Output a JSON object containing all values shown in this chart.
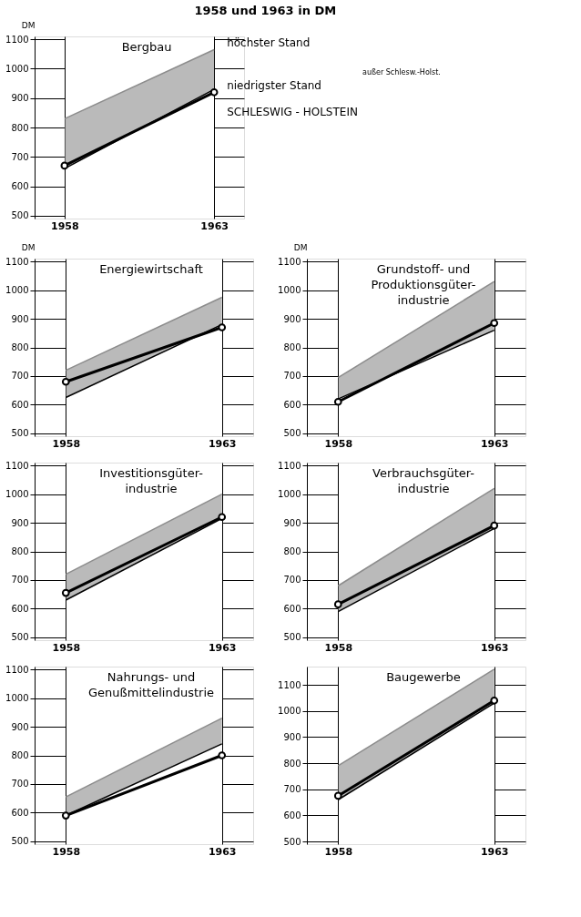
{
  "chart_data": [
    {
      "type": "line",
      "subtitle": "1958 und 1963 in DM",
      "title": "Bergbau",
      "ylabel": "DM",
      "categories": [
        "1958",
        "1963"
      ],
      "ylim": [
        490,
        1110
      ],
      "yticks": [
        500,
        600,
        700,
        800,
        900,
        1000,
        1100
      ],
      "grid": true,
      "legend": "right",
      "annotations": [
        "außer Schlesw.-Holst."
      ],
      "series": [
        {
          "name": "höchster Stand",
          "type": "line",
          "color": "#8c8c8c",
          "values": [
            830,
            1065
          ],
          "lower": [
            660,
            930
          ],
          "upper": [
            830,
            1065
          ]
        },
        {
          "name": "niedrigster Stand",
          "type": "line",
          "color": "#000000",
          "values": [
            660,
            930
          ]
        },
        {
          "name": "SCHLESWIG - HOLSTEIN",
          "type": "line",
          "color": "#000000",
          "marker": "circle",
          "values": [
            670,
            920
          ]
        }
      ]
    },
    {
      "type": "line",
      "title": "Energiewirtschaft",
      "ylabel": "DM",
      "categories": [
        "1958",
        "1963"
      ],
      "ylim": [
        490,
        1110
      ],
      "yticks": [
        500,
        600,
        700,
        800,
        900,
        1000,
        1100
      ],
      "grid": true,
      "series": [
        {
          "type": "line",
          "color": "#8c8c8c",
          "values": [
            720,
            975
          ],
          "lower": [
            625,
            880
          ],
          "upper": [
            720,
            975
          ]
        },
        {
          "type": "line",
          "color": "#000000",
          "values": [
            625,
            880
          ]
        },
        {
          "type": "line",
          "color": "#000000",
          "marker": "circle",
          "values": [
            680,
            870
          ]
        }
      ]
    },
    {
      "type": "line",
      "title": "Grundstoff- und\nProduktionsgüter-\nindustrie",
      "ylabel": "DM",
      "categories": [
        "1958",
        "1963"
      ],
      "ylim": [
        490,
        1110
      ],
      "yticks": [
        500,
        600,
        700,
        800,
        900,
        1000,
        1100
      ],
      "grid": true,
      "series": [
        {
          "type": "line",
          "color": "#8c8c8c",
          "values": [
            695,
            1030
          ],
          "lower": [
            620,
            860
          ],
          "upper": [
            695,
            1030
          ]
        },
        {
          "type": "line",
          "color": "#000000",
          "values": [
            620,
            860
          ]
        },
        {
          "type": "line",
          "color": "#000000",
          "marker": "circle",
          "values": [
            610,
            885
          ]
        }
      ]
    },
    {
      "type": "line",
      "title": "Investitionsgüter-\nindustrie",
      "categories": [
        "1958",
        "1963"
      ],
      "ylim": [
        490,
        1110
      ],
      "yticks": [
        500,
        600,
        700,
        800,
        900,
        1000,
        1100
      ],
      "grid": true,
      "series": [
        {
          "type": "line",
          "color": "#8c8c8c",
          "values": [
            720,
            1000
          ],
          "lower": [
            630,
            915
          ],
          "upper": [
            720,
            1000
          ]
        },
        {
          "type": "line",
          "color": "#000000",
          "values": [
            630,
            915
          ]
        },
        {
          "type": "line",
          "color": "#000000",
          "marker": "circle",
          "values": [
            655,
            920
          ]
        }
      ]
    },
    {
      "type": "line",
      "title": "Verbrauchsgüter-\nindustrie",
      "categories": [
        "1958",
        "1963"
      ],
      "ylim": [
        490,
        1110
      ],
      "yticks": [
        500,
        600,
        700,
        800,
        900,
        1000,
        1100
      ],
      "grid": true,
      "series": [
        {
          "type": "line",
          "color": "#8c8c8c",
          "values": [
            680,
            1020
          ],
          "lower": [
            590,
            880
          ],
          "upper": [
            680,
            1020
          ]
        },
        {
          "type": "line",
          "color": "#000000",
          "values": [
            590,
            880
          ]
        },
        {
          "type": "line",
          "color": "#000000",
          "marker": "circle",
          "values": [
            615,
            890
          ]
        }
      ]
    },
    {
      "type": "line",
      "title": "Nahrungs- und\nGenußmittelindustrie",
      "categories": [
        "1958",
        "1963"
      ],
      "ylim": [
        490,
        1110
      ],
      "yticks": [
        500,
        600,
        700,
        800,
        900,
        1000,
        1100
      ],
      "grid": true,
      "series": [
        {
          "type": "line",
          "color": "#8c8c8c",
          "values": [
            655,
            930
          ],
          "lower": [
            590,
            840
          ],
          "upper": [
            655,
            930
          ]
        },
        {
          "type": "line",
          "color": "#000000",
          "values": [
            590,
            840
          ]
        },
        {
          "type": "line",
          "color": "#000000",
          "marker": "circle",
          "values": [
            590,
            800
          ]
        }
      ]
    },
    {
      "type": "line",
      "title": "Baugewerbe",
      "categories": [
        "1958",
        "1963"
      ],
      "ylim": [
        490,
        1170
      ],
      "yticks": [
        500,
        600,
        700,
        800,
        900,
        1000,
        1100
      ],
      "grid": true,
      "series": [
        {
          "type": "line",
          "color": "#8c8c8c",
          "values": [
            790,
            1160
          ],
          "lower": [
            660,
            1030
          ],
          "upper": [
            790,
            1160
          ]
        },
        {
          "type": "line",
          "color": "#000000",
          "values": [
            660,
            1030
          ]
        },
        {
          "type": "line",
          "color": "#000000",
          "marker": "circle",
          "values": [
            675,
            1040
          ]
        }
      ]
    }
  ]
}
